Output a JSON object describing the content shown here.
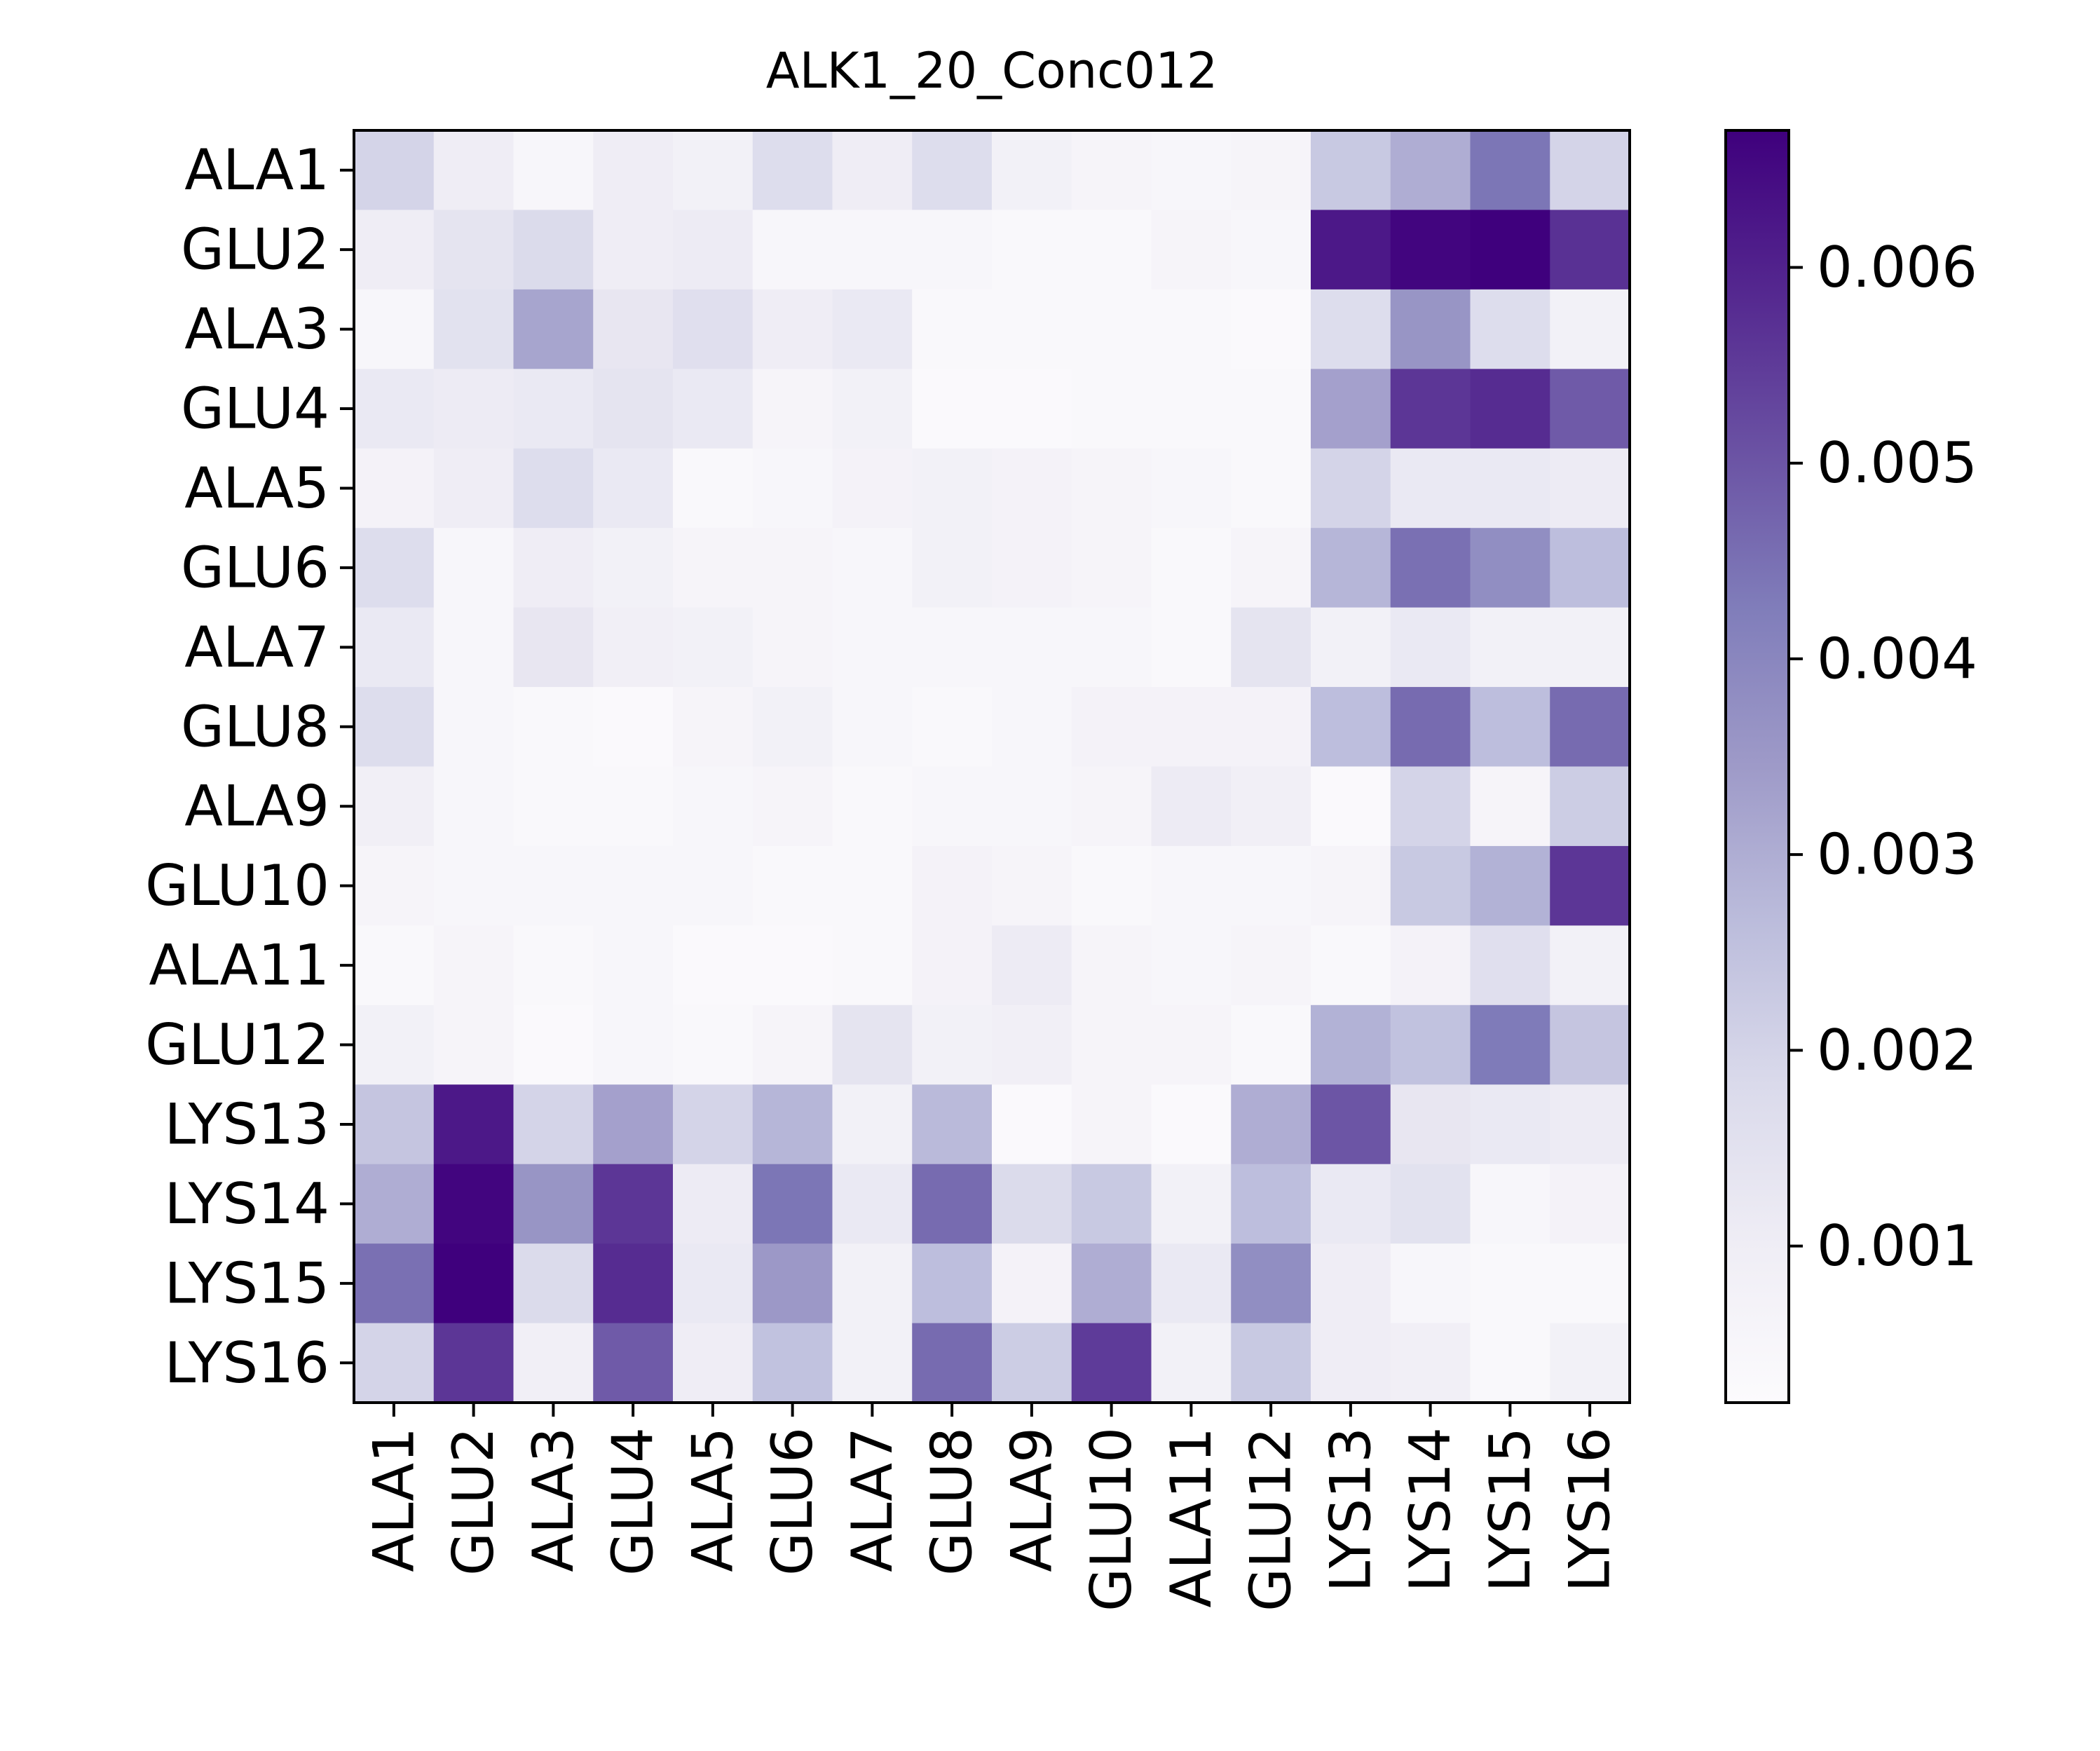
{
  "chart_data": {
    "type": "heatmap",
    "title": "ALK1_20_Conc012",
    "x_labels": [
      "ALA1",
      "GLU2",
      "ALA3",
      "GLU4",
      "ALA5",
      "GLU6",
      "ALA7",
      "GLU8",
      "ALA9",
      "GLU10",
      "ALA11",
      "GLU12",
      "LYS13",
      "LYS14",
      "LYS15",
      "LYS16"
    ],
    "y_labels": [
      "ALA1",
      "GLU2",
      "ALA3",
      "GLU4",
      "ALA5",
      "GLU6",
      "ALA7",
      "GLU8",
      "ALA9",
      "GLU10",
      "ALA11",
      "GLU12",
      "LYS13",
      "LYS14",
      "LYS15",
      "LYS16"
    ],
    "colormap": "Purples",
    "color_range": [
      0.0002,
      0.0067
    ],
    "colorbar_ticks": [
      "0.001",
      "0.002",
      "0.003",
      "0.004",
      "0.005",
      "0.006"
    ],
    "colorbar_tick_values": [
      0.001,
      0.002,
      0.003,
      0.004,
      0.005,
      0.006
    ],
    "values": [
      [
        0.002,
        0.001,
        0.0005,
        0.001,
        0.0008,
        0.0017,
        0.001,
        0.0017,
        0.0008,
        0.0006,
        0.0005,
        0.0006,
        0.0023,
        0.003,
        0.0044,
        0.002
      ],
      [
        0.001,
        0.0014,
        0.0018,
        0.001,
        0.0011,
        0.0005,
        0.0005,
        0.0005,
        0.0004,
        0.0004,
        0.0006,
        0.0005,
        0.0062,
        0.0066,
        0.0067,
        0.0057
      ],
      [
        0.0005,
        0.0015,
        0.0032,
        0.0013,
        0.0016,
        0.001,
        0.0012,
        0.0004,
        0.0004,
        0.0004,
        0.0004,
        0.0003,
        0.0017,
        0.0036,
        0.0017,
        0.0008
      ],
      [
        0.0012,
        0.0011,
        0.0012,
        0.0014,
        0.0012,
        0.0006,
        0.0008,
        0.0003,
        0.0003,
        0.0004,
        0.0004,
        0.0004,
        0.0033,
        0.0056,
        0.0058,
        0.0049
      ],
      [
        0.0007,
        0.001,
        0.0017,
        0.0012,
        0.0004,
        0.0005,
        0.0007,
        0.0008,
        0.0007,
        0.0006,
        0.0005,
        0.0004,
        0.002,
        0.0012,
        0.0012,
        0.0011
      ],
      [
        0.0017,
        0.0005,
        0.001,
        0.0008,
        0.0006,
        0.0006,
        0.0005,
        0.0008,
        0.0007,
        0.0006,
        0.0004,
        0.0006,
        0.0028,
        0.0045,
        0.0038,
        0.0026
      ],
      [
        0.0012,
        0.0005,
        0.0013,
        0.0009,
        0.0008,
        0.0006,
        0.0005,
        0.0005,
        0.0005,
        0.0005,
        0.0004,
        0.0014,
        0.0008,
        0.0012,
        0.0008,
        0.0008
      ],
      [
        0.0017,
        0.0005,
        0.0004,
        0.0003,
        0.0006,
        0.0008,
        0.0005,
        0.0004,
        0.0005,
        0.0007,
        0.0007,
        0.0007,
        0.0026,
        0.0046,
        0.0026,
        0.0046
      ],
      [
        0.0009,
        0.0005,
        0.0004,
        0.0004,
        0.0005,
        0.0006,
        0.0004,
        0.0005,
        0.0005,
        0.0006,
        0.0011,
        0.0009,
        0.0003,
        0.002,
        0.0006,
        0.0022
      ],
      [
        0.0006,
        0.0005,
        0.0005,
        0.0005,
        0.0005,
        0.0004,
        0.0004,
        0.0007,
        0.0006,
        0.0004,
        0.0005,
        0.0005,
        0.0006,
        0.0023,
        0.0029,
        0.0056
      ],
      [
        0.0004,
        0.0006,
        0.0004,
        0.0005,
        0.0003,
        0.0003,
        0.0004,
        0.0007,
        0.0011,
        0.0006,
        0.0005,
        0.0006,
        0.0004,
        0.0007,
        0.0016,
        0.0008
      ],
      [
        0.0008,
        0.0006,
        0.0003,
        0.0005,
        0.0004,
        0.0006,
        0.0014,
        0.0008,
        0.0009,
        0.0006,
        0.0006,
        0.0004,
        0.0029,
        0.0025,
        0.0043,
        0.0024
      ],
      [
        0.0024,
        0.0062,
        0.002,
        0.0033,
        0.002,
        0.0028,
        0.0008,
        0.0027,
        0.0003,
        0.0006,
        0.0003,
        0.003,
        0.005,
        0.0013,
        0.0012,
        0.0011
      ],
      [
        0.003,
        0.0066,
        0.0036,
        0.0056,
        0.0011,
        0.0044,
        0.0012,
        0.0046,
        0.0018,
        0.0023,
        0.0008,
        0.0026,
        0.0012,
        0.0015,
        0.0005,
        0.0007
      ],
      [
        0.0045,
        0.0067,
        0.0018,
        0.0058,
        0.0012,
        0.0035,
        0.0008,
        0.0026,
        0.0007,
        0.003,
        0.0012,
        0.0038,
        0.001,
        0.0005,
        0.0004,
        0.0004
      ],
      [
        0.002,
        0.0056,
        0.0009,
        0.0049,
        0.001,
        0.0025,
        0.0008,
        0.0046,
        0.0022,
        0.0055,
        0.0008,
        0.0023,
        0.001,
        0.0009,
        0.0004,
        0.0008
      ]
    ]
  }
}
